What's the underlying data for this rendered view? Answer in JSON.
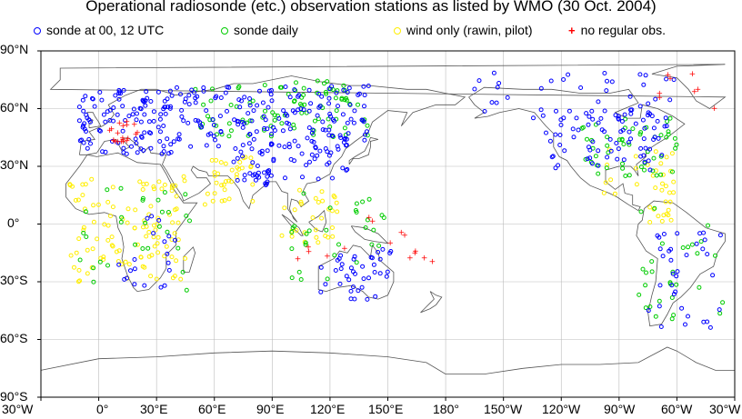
{
  "title": "Operational radiosonde (etc.) observation stations as listed by WMO (30 Oct. 2004)",
  "legend": [
    {
      "label": "sonde at 00, 12 UTC",
      "color": "#0000ff",
      "symbol": "circle-icon"
    },
    {
      "label": "sonde daily",
      "color": "#00cc00",
      "symbol": "circle-icon"
    },
    {
      "label": "wind only (rawin, pilot)",
      "color": "#ffff00",
      "symbol": "circle-icon"
    },
    {
      "label": "no regular obs.",
      "color": "#ff0000",
      "symbol": "plus-icon"
    }
  ],
  "axes": {
    "lat_labels": [
      "90°N",
      "60°N",
      "30°N",
      "0°",
      "30°S",
      "60°S",
      "90°S"
    ],
    "lon_labels": [
      "30°W",
      "0°",
      "30°E",
      "60°E",
      "90°E",
      "120°E",
      "150°E",
      "180°",
      "150°W",
      "120°W",
      "90°W",
      "60°W",
      "30°W"
    ]
  },
  "map": {
    "projection": "equirectangular",
    "lon_center": 165,
    "lon_range": [
      -30,
      330
    ],
    "lat_range": [
      -90,
      90
    ],
    "grid": true,
    "station_clusters": [
      {
        "type": "sonde_0012",
        "lon": [
          -10,
          40
        ],
        "lat": [
          36,
          70
        ],
        "n": 110
      },
      {
        "type": "sonde_0012",
        "lon": [
          40,
          140
        ],
        "lat": [
          40,
          72
        ],
        "n": 160
      },
      {
        "type": "sonde_0012",
        "lon": [
          70,
          130
        ],
        "lat": [
          20,
          45
        ],
        "n": 70
      },
      {
        "type": "sonde_0012",
        "lon": [
          -130,
          -65
        ],
        "lat": [
          28,
          60
        ],
        "n": 80
      },
      {
        "type": "sonde_0012",
        "lon": [
          -165,
          -60
        ],
        "lat": [
          55,
          80
        ],
        "n": 35
      },
      {
        "type": "sonde_0012",
        "lon": [
          115,
          152
        ],
        "lat": [
          -40,
          -12
        ],
        "n": 40
      },
      {
        "type": "sonde_0012",
        "lon": [
          -75,
          -35
        ],
        "lat": [
          -55,
          0
        ],
        "n": 35
      },
      {
        "type": "sonde_0012",
        "lon": [
          10,
          40
        ],
        "lat": [
          -35,
          5
        ],
        "n": 20
      },
      {
        "type": "sonde_daily",
        "lon": [
          50,
          140
        ],
        "lat": [
          45,
          75
        ],
        "n": 90
      },
      {
        "type": "sonde_daily",
        "lon": [
          -110,
          -60
        ],
        "lat": [
          25,
          55
        ],
        "n": 50
      },
      {
        "type": "sonde_daily",
        "lon": [
          -10,
          50
        ],
        "lat": [
          -35,
          20
        ],
        "n": 30
      },
      {
        "type": "sonde_daily",
        "lon": [
          -80,
          -35
        ],
        "lat": [
          -50,
          10
        ],
        "n": 30
      },
      {
        "type": "sonde_daily",
        "lon": [
          100,
          150
        ],
        "lat": [
          -30,
          20
        ],
        "n": 30
      },
      {
        "type": "wind_only",
        "lon": [
          -15,
          45
        ],
        "lat": [
          -30,
          25
        ],
        "n": 110
      },
      {
        "type": "wind_only",
        "lon": [
          55,
          80
        ],
        "lat": [
          10,
          35
        ],
        "n": 35
      },
      {
        "type": "wind_only",
        "lon": [
          95,
          125
        ],
        "lat": [
          -10,
          20
        ],
        "n": 30
      },
      {
        "type": "wind_only",
        "lon": [
          -100,
          -60
        ],
        "lat": [
          15,
          40
        ],
        "n": 25
      },
      {
        "type": "wind_only",
        "lon": [
          -75,
          -60
        ],
        "lat": [
          0,
          12
        ],
        "n": 12
      },
      {
        "type": "no_obs",
        "lon": [
          5,
          20
        ],
        "lat": [
          42,
          54
        ],
        "n": 20
      },
      {
        "type": "no_obs",
        "lon": [
          100,
          175
        ],
        "lat": [
          -20,
          5
        ],
        "n": 15
      },
      {
        "type": "no_obs",
        "lon": [
          -70,
          -40
        ],
        "lat": [
          58,
          82
        ],
        "n": 8
      }
    ]
  }
}
